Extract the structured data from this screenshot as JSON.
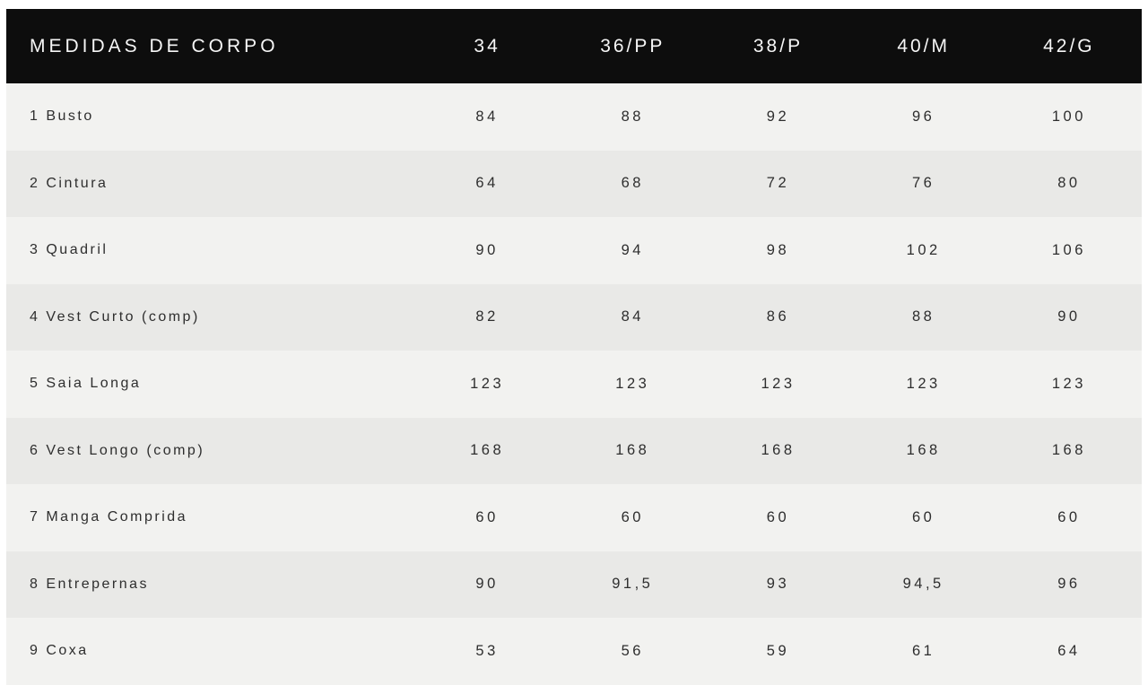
{
  "table": {
    "header": {
      "label": "MEDIDAS DE CORPO",
      "sizes": [
        "34",
        "36/PP",
        "38/P",
        "40/M",
        "42/G"
      ]
    },
    "rows": [
      {
        "label": "1 Busto",
        "values": [
          "84",
          "88",
          "92",
          "96",
          "100"
        ]
      },
      {
        "label": "2 Cintura",
        "values": [
          "64",
          "68",
          "72",
          "76",
          "80"
        ]
      },
      {
        "label": "3 Quadril",
        "values": [
          "90",
          "94",
          "98",
          "102",
          "106"
        ]
      },
      {
        "label": "4 Vest Curto (comp)",
        "values": [
          "82",
          "84",
          "86",
          "88",
          "90"
        ]
      },
      {
        "label": "5 Saia Longa",
        "values": [
          "123",
          "123",
          "123",
          "123",
          "123"
        ]
      },
      {
        "label": "6 Vest Longo (comp)",
        "values": [
          "168",
          "168",
          "168",
          "168",
          "168"
        ]
      },
      {
        "label": "7 Manga Comprida",
        "values": [
          "60",
          "60",
          "60",
          "60",
          "60"
        ]
      },
      {
        "label": "8 Entrepernas",
        "values": [
          "90",
          "91,5",
          "93",
          "94,5",
          "96"
        ]
      },
      {
        "label": "9 Coxa",
        "values": [
          "53",
          "56",
          "59",
          "61",
          "64"
        ]
      }
    ],
    "colors": {
      "header_bg": "#0d0d0d",
      "header_text": "#f6f6f6",
      "row_odd_bg": "#f2f2f0",
      "row_even_bg": "#e9e9e7",
      "body_text": "#2e2e2e",
      "page_bg": "#ffffff"
    }
  },
  "chart_data": {
    "type": "table",
    "title": "MEDIDAS DE CORPO",
    "columns": [
      "MEDIDAS DE CORPO",
      "34",
      "36/PP",
      "38/P",
      "40/M",
      "42/G"
    ],
    "rows": [
      [
        "1 Busto",
        84,
        88,
        92,
        96,
        100
      ],
      [
        "2 Cintura",
        64,
        68,
        72,
        76,
        80
      ],
      [
        "3 Quadril",
        90,
        94,
        98,
        102,
        106
      ],
      [
        "4 Vest Curto (comp)",
        82,
        84,
        86,
        88,
        90
      ],
      [
        "5 Saia Longa",
        123,
        123,
        123,
        123,
        123
      ],
      [
        "6 Vest Longo (comp)",
        168,
        168,
        168,
        168,
        168
      ],
      [
        "7 Manga Comprida",
        60,
        60,
        60,
        60,
        60
      ],
      [
        "8 Entrepernas",
        90,
        91.5,
        93,
        94.5,
        96
      ],
      [
        "9 Coxa",
        53,
        56,
        59,
        61,
        64
      ]
    ],
    "notes": "Decimal values rendered with comma (91,5 / 94,5) as in source"
  }
}
